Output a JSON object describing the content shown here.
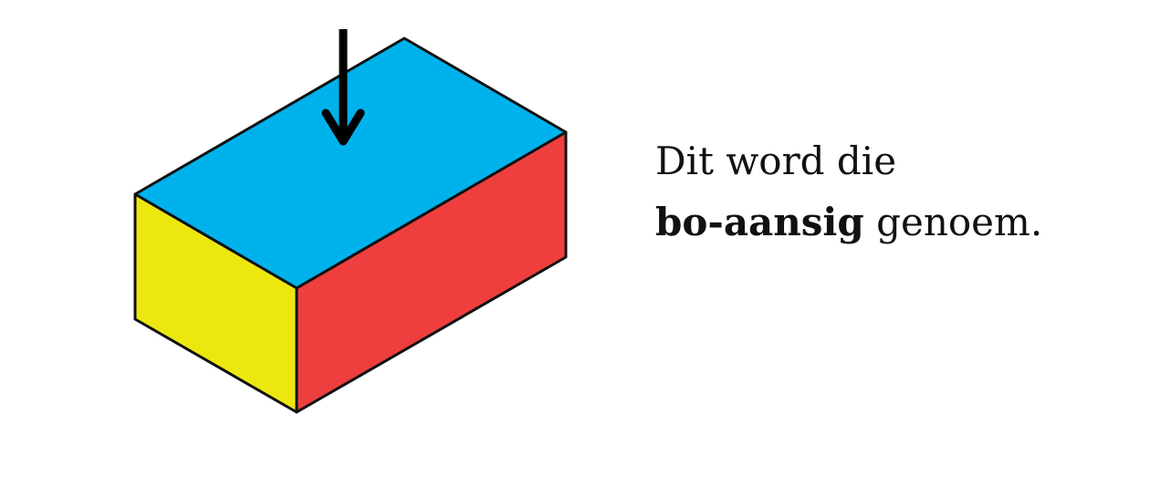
{
  "caption": {
    "line1": "Dit word die",
    "bold_term": "bo-aansig",
    "line2_rest": " genoem."
  },
  "colors": {
    "top_face": "#00b2ec",
    "front_face": "#ef3e3e",
    "side_face": "#ece80f",
    "outline": "#111111",
    "arrow": "#000000"
  }
}
